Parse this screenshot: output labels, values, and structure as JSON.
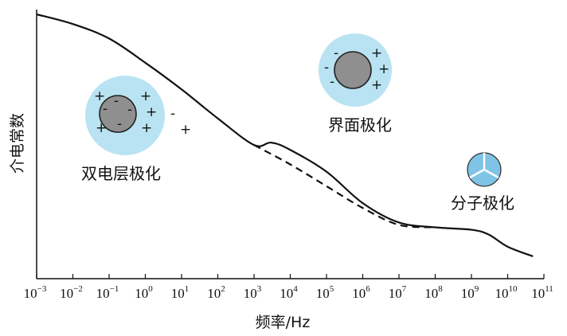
{
  "chart_data": {
    "type": "line",
    "title": "",
    "ylabel": "介电常数",
    "xlabel": "频率/Hz",
    "x_scale": "log",
    "xlim": [
      0.001,
      100000000000.0
    ],
    "ylim": [
      0,
      1
    ],
    "grid": false,
    "legend": "none",
    "x_ticks": [
      {
        "base": "10",
        "exp": "−3",
        "value": 0.001
      },
      {
        "base": "10",
        "exp": "−2",
        "value": 0.01
      },
      {
        "base": "10",
        "exp": "−1",
        "value": 0.1
      },
      {
        "base": "10",
        "exp": "0",
        "value": 1.0
      },
      {
        "base": "10",
        "exp": "1",
        "value": 10.0
      },
      {
        "base": "10",
        "exp": "2",
        "value": 100.0
      },
      {
        "base": "10",
        "exp": "3",
        "value": 1000.0
      },
      {
        "base": "10",
        "exp": "4",
        "value": 10000.0
      },
      {
        "base": "10",
        "exp": "5",
        "value": 100000.0
      },
      {
        "base": "10",
        "exp": "6",
        "value": 1000000.0
      },
      {
        "base": "10",
        "exp": "7",
        "value": 10000000.0
      },
      {
        "base": "10",
        "exp": "8",
        "value": 100000000.0
      },
      {
        "base": "10",
        "exp": "9",
        "value": 1000000000.0
      },
      {
        "base": "10",
        "exp": "10",
        "value": 10000000000.0
      },
      {
        "base": "10",
        "exp": "11",
        "value": 100000000000.0
      }
    ],
    "series": [
      {
        "style": "solid",
        "x": [
          0.001,
          0.01,
          0.1,
          1.0,
          10.0,
          100.0,
          1000.0,
          3000.0,
          10000.0,
          100000.0,
          1000000.0,
          10000000.0,
          100000000.0,
          1000000000.0,
          3000000000.0,
          10000000000.0,
          50000000000.0
        ],
        "y": [
          1.0,
          0.96,
          0.9,
          0.8,
          0.69,
          0.57,
          0.46,
          0.47,
          0.44,
          0.35,
          0.22,
          0.14,
          0.12,
          0.11,
          0.09,
          0.04,
          0.0
        ]
      },
      {
        "style": "dashed",
        "x": [
          1000.0,
          10000.0,
          100000.0,
          1000000.0,
          10000000.0,
          100000000.0
        ],
        "y": [
          0.46,
          0.38,
          0.29,
          0.2,
          0.13,
          0.12
        ]
      }
    ],
    "annotations": [
      {
        "text": "双电层极化"
      },
      {
        "text": "界面极化"
      },
      {
        "text": "分子极化"
      }
    ],
    "colors": {
      "line": "#111111",
      "shell": "#b9e3f2",
      "core": "#8f8f8f",
      "molecule": "#7fc4e6"
    }
  }
}
